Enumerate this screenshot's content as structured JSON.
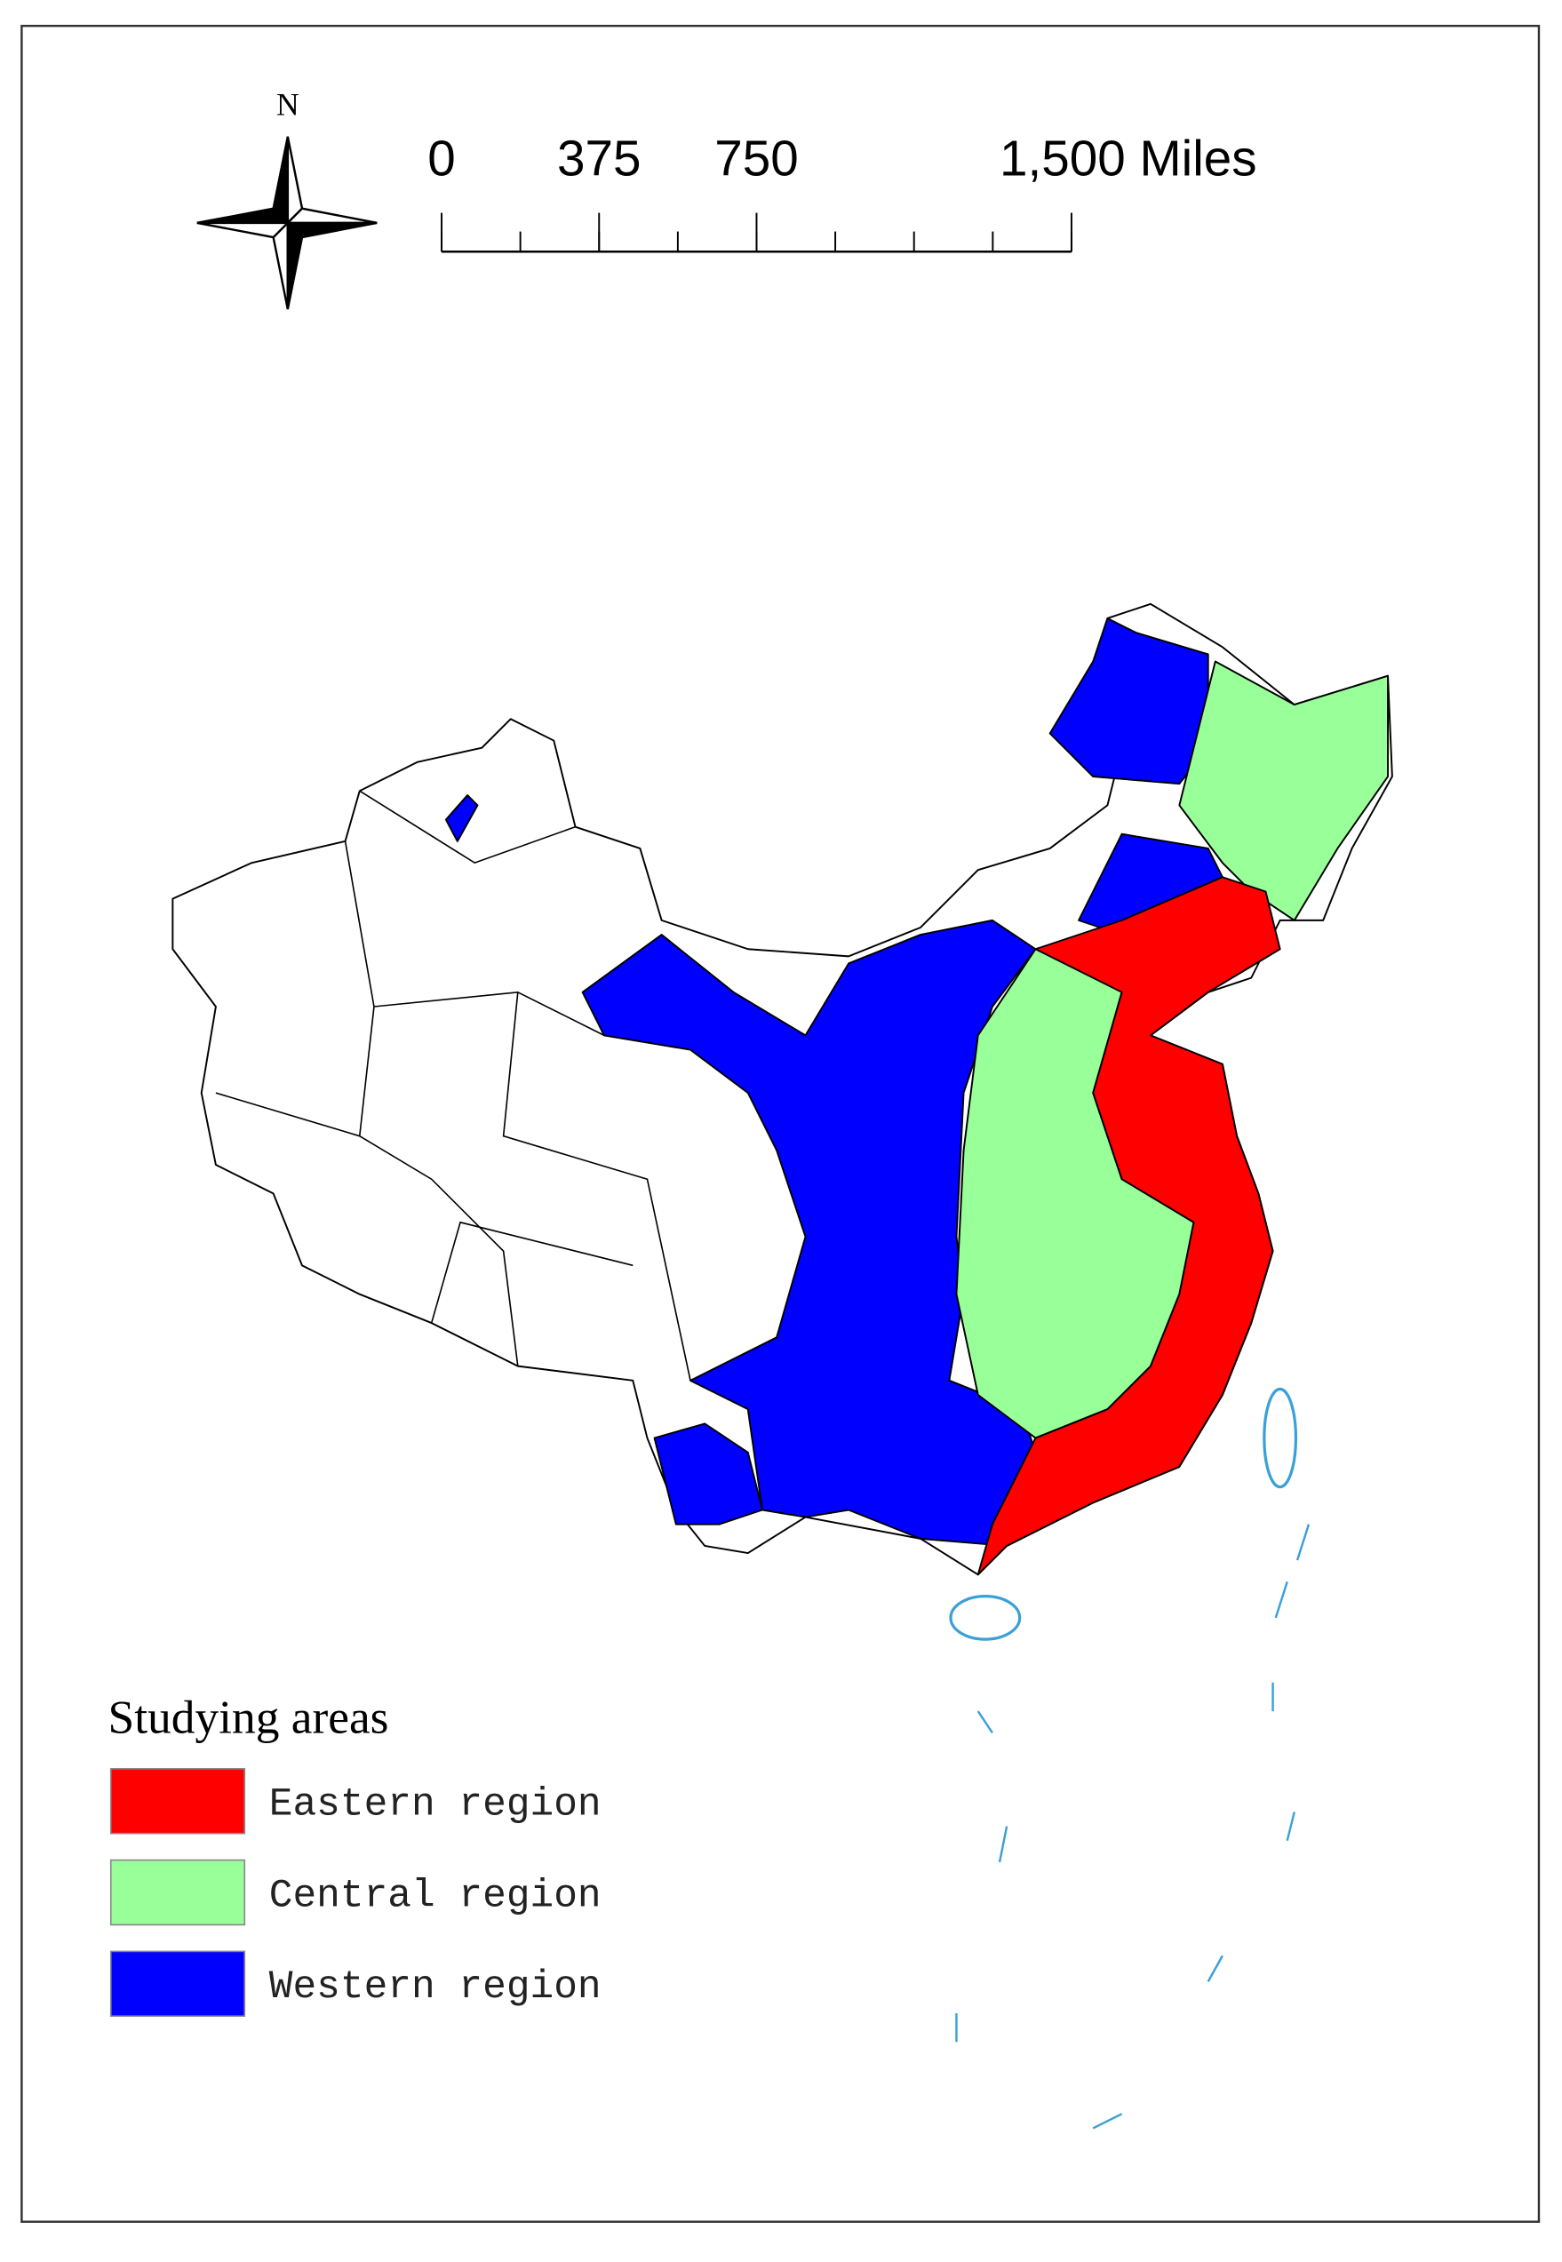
{
  "compass": {
    "label": "N"
  },
  "scale_bar": {
    "ticks": [
      {
        "value": 0,
        "label": "0"
      },
      {
        "value": 375,
        "label": "375"
      },
      {
        "value": 750,
        "label": "750"
      },
      {
        "value": 1500,
        "label": "1,500 Miles"
      }
    ]
  },
  "legend": {
    "title": "Studying areas",
    "items": [
      {
        "name": "Eastern region",
        "color": "#ff0000"
      },
      {
        "name": "Central region",
        "color": "#99ff99"
      },
      {
        "name": "Western region",
        "color": "#0000ff"
      }
    ]
  }
}
